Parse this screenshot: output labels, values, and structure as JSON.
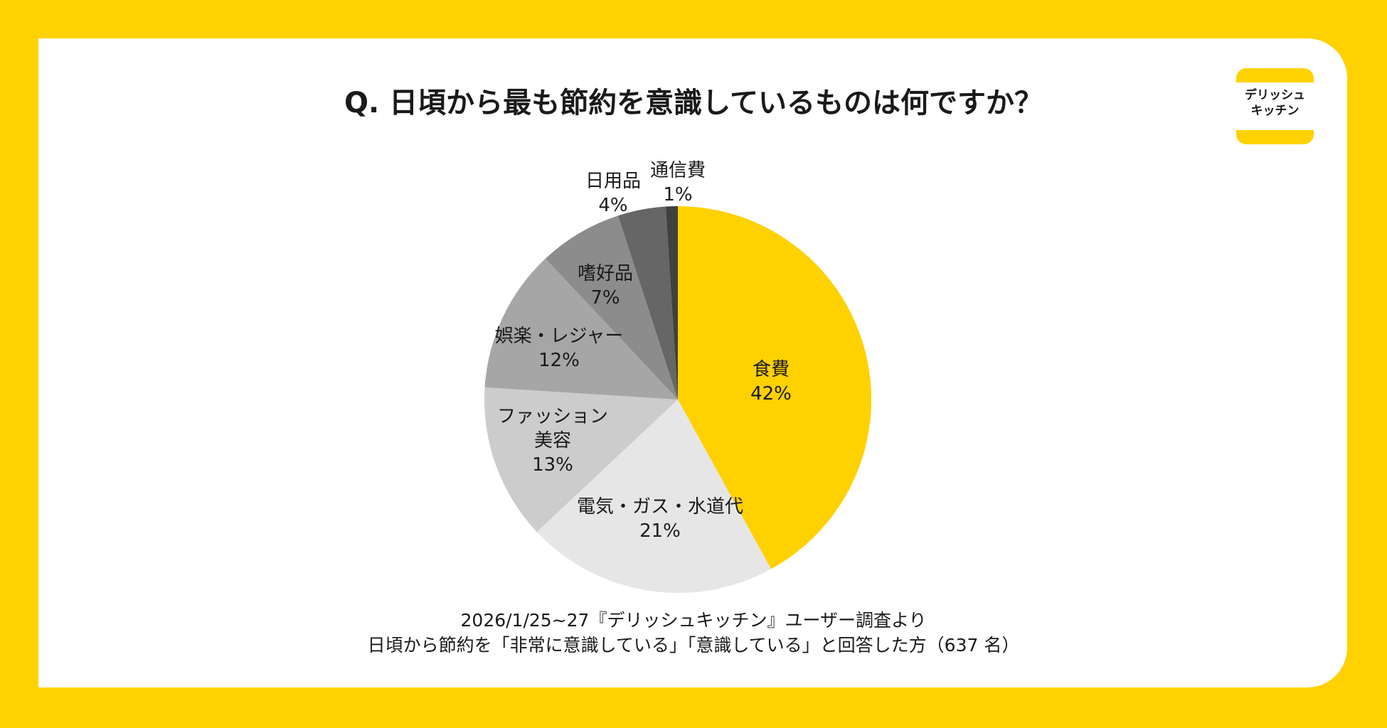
{
  "title": "Q. 日頃から最も節約を意識しているものは何ですか？",
  "logo": {
    "line1": "デリッシュ",
    "line2": "キッチン",
    "color": "#FFD100"
  },
  "footer": {
    "line1": "2026/1/25~27『デリッシュキッチン』ユーザー調査より",
    "line2": "日頃から節約を「非常に意識している」「意識している」と回答した方（637 名）"
  },
  "chart_data": {
    "type": "pie",
    "title": "Q. 日頃から最も節約を意識しているものは何ですか？",
    "start": "top",
    "direction": "clockwise",
    "slices": [
      {
        "label": "食費",
        "value": 42,
        "color": "#FFD100"
      },
      {
        "label": "電気・ガス・水道代",
        "value": 21,
        "color": "#E6E6E6"
      },
      {
        "label": "ファッション\n美容",
        "value": 13,
        "color": "#CCCCCC"
      },
      {
        "label": "娯楽・レジャー",
        "value": 12,
        "color": "#A6A6A6"
      },
      {
        "label": "嗜好品",
        "value": 7,
        "color": "#8C8C8C"
      },
      {
        "label": "日用品",
        "value": 4,
        "color": "#666666"
      },
      {
        "label": "通信費",
        "value": 1,
        "color": "#404040"
      }
    ]
  }
}
